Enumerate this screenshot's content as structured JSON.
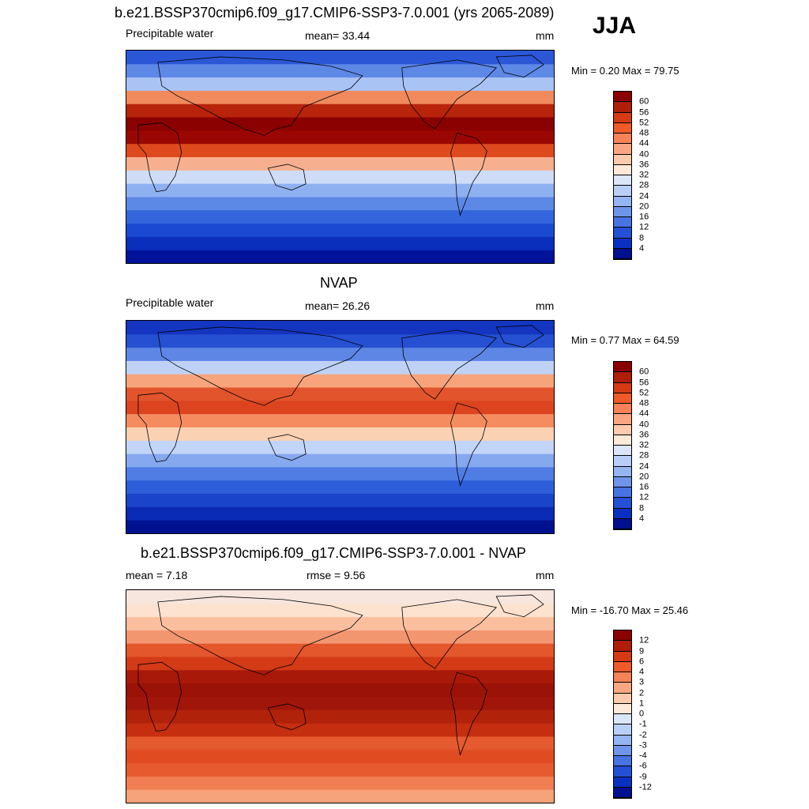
{
  "season": "JJA",
  "panels": [
    {
      "title": "b.e21.BSSP370cmip6.f09_g17.CMIP6-SSP3-7.0.001 (yrs 2065-2089)",
      "left_label": "Precipitable water",
      "center_label": "mean=  33.44",
      "units": "mm",
      "minmax": "Min =   0.20 Max =  79.75",
      "colorbar": {
        "labels": [
          "60",
          "56",
          "52",
          "48",
          "44",
          "40",
          "36",
          "32",
          "28",
          "24",
          "20",
          "16",
          "12",
          "8",
          "4"
        ],
        "colors": [
          "#8b0000",
          "#b01d08",
          "#d63a14",
          "#f05a28",
          "#f78258",
          "#fba682",
          "#fdcaab",
          "#fee8d8",
          "#dbe6fb",
          "#b9cff7",
          "#95b4f2",
          "#6f95eb",
          "#4873e3",
          "#2350d6",
          "#0a30c2",
          "#00108f"
        ]
      },
      "zonal_colors": [
        "#00139a",
        "#0a2fbd",
        "#1c49d1",
        "#3465dc",
        "#5c88e6",
        "#8fb0f0",
        "#cfdcf8",
        "#f6b08f",
        "#de4a1d",
        "#9a0703",
        "#8b0000",
        "#b7240b",
        "#f08a5c",
        "#a9c3f4",
        "#5e88e6",
        "#2b57d6"
      ]
    },
    {
      "title": "NVAP",
      "left_label": "Precipitable water",
      "center_label": "mean=  26.26",
      "units": "mm",
      "minmax": "Min =   0.77 Max =  64.59",
      "colorbar": {
        "labels": [
          "60",
          "56",
          "52",
          "48",
          "44",
          "40",
          "36",
          "32",
          "28",
          "24",
          "20",
          "16",
          "12",
          "8",
          "4"
        ],
        "colors": [
          "#8b0000",
          "#b01d08",
          "#d63a14",
          "#f05a28",
          "#f78258",
          "#fba682",
          "#fdcaab",
          "#fee8d8",
          "#dbe6fb",
          "#b9cff7",
          "#95b4f2",
          "#6f95eb",
          "#4873e3",
          "#2350d6",
          "#0a30c2",
          "#00108f"
        ]
      },
      "zonal_colors": [
        "#00118f",
        "#0a2bb6",
        "#1a44ca",
        "#2d5dd8",
        "#4f7de4",
        "#86a8ef",
        "#c3d5f7",
        "#fbd1b4",
        "#f48c60",
        "#dc4420",
        "#e2542b",
        "#f7a47c",
        "#bfd2f6",
        "#5d86e5",
        "#2550d2",
        "#1435c0"
      ]
    },
    {
      "title": "b.e21.BSSP370cmip6.f09_g17.CMIP6-SSP3-7.0.001 - NVAP",
      "left_label": "mean =   7.18",
      "center_label": "rmse =   9.56",
      "units": "mm",
      "minmax": "Min = -16.70 Max =  25.46",
      "colorbar": {
        "labels": [
          "12",
          "9",
          "6",
          "4",
          "3",
          "2",
          "1",
          "0",
          "-1",
          "-2",
          "-3",
          "-4",
          "-6",
          "-9",
          "-12"
        ],
        "colors": [
          "#8b0000",
          "#b01d08",
          "#d63a14",
          "#f05a28",
          "#f78258",
          "#fba682",
          "#fdcaab",
          "#fee8d8",
          "#dbe6fb",
          "#b9cff7",
          "#95b4f2",
          "#6f95eb",
          "#4873e3",
          "#2350d6",
          "#0a30c2",
          "#00108f"
        ]
      },
      "zonal_colors": [
        "#f6a27a",
        "#f07d52",
        "#e55a2e",
        "#e04b22",
        "#e55a2e",
        "#c52e0f",
        "#b1220a",
        "#a0160a",
        "#9a1208",
        "#a8190a",
        "#d33a16",
        "#e4562c",
        "#f29670",
        "#fbbf9f",
        "#fde2cf",
        "#f7e6de"
      ]
    }
  ]
}
